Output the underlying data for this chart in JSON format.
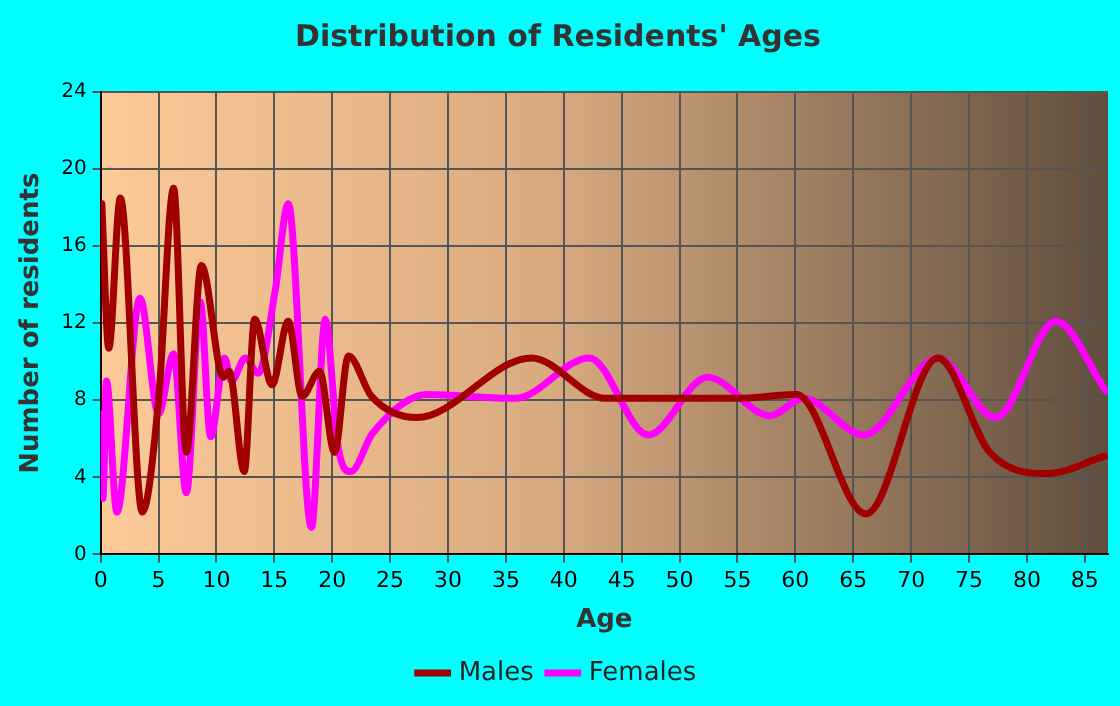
{
  "chart_data": {
    "type": "line",
    "title": "Distribution of Residents' Ages",
    "xlabel": "Age",
    "ylabel": "Number of residents",
    "xlim": [
      0,
      87
    ],
    "xticks": [
      0,
      5,
      10,
      15,
      20,
      25,
      30,
      35,
      40,
      45,
      50,
      55,
      60,
      65,
      70,
      75,
      80,
      85
    ],
    "ylim": [
      0,
      24
    ],
    "yticks": [
      0,
      4,
      8,
      12,
      16,
      20,
      24
    ],
    "grid": true,
    "legend": "bottom",
    "marker": "none",
    "line_style": "solid",
    "series": [
      {
        "name": "Males",
        "color": "#a00000",
        "x": [
          0.1,
          0.7,
          1.7,
          3.6,
          5,
          6.3,
          7.4,
          8.7,
          10.6,
          11.1,
          12.4,
          13.3,
          14.8,
          16.2,
          17.4,
          18.9,
          20.2,
          21.4,
          23.4,
          27.3,
          37.2,
          43.6,
          50,
          55,
          60.1,
          66.1,
          72.3,
          76.8,
          81.8,
          86.7
        ],
        "values": [
          18.2,
          10.7,
          18.5,
          2.2,
          8,
          19,
          5.3,
          15,
          9.2,
          9.5,
          4.3,
          12.2,
          8.8,
          12.1,
          8.2,
          9.5,
          5.3,
          10.3,
          8.2,
          7.1,
          10.2,
          8.1,
          8.1,
          8.1,
          8.3,
          2.1,
          10.2,
          5.3,
          4.2,
          5.1
        ]
      },
      {
        "name": "Females",
        "color": "#ff00ff",
        "x": [
          0.1,
          0.2,
          0.5,
          1.4,
          3.4,
          5,
          6.3,
          7.4,
          8.6,
          9.5,
          10.7,
          11.3,
          12.5,
          13.6,
          15.1,
          16.2,
          18.2,
          19.4,
          20.5,
          21.6,
          23.5,
          28.2,
          35.8,
          42.2,
          47.3,
          52.4,
          57.8,
          60.7,
          65.9,
          72.3,
          77.3,
          82.5,
          86.8
        ],
        "values": [
          7.3,
          2.9,
          9,
          2.2,
          13.3,
          7.3,
          10.4,
          3.2,
          13.1,
          6.1,
          10.2,
          9,
          10.2,
          9.4,
          13.8,
          18.2,
          1.4,
          12.2,
          5.6,
          4.3,
          6.3,
          8.3,
          8.1,
          10.2,
          6.2,
          9.2,
          7.2,
          8.1,
          6.2,
          10.2,
          7.1,
          12.1,
          8.5
        ]
      }
    ]
  }
}
